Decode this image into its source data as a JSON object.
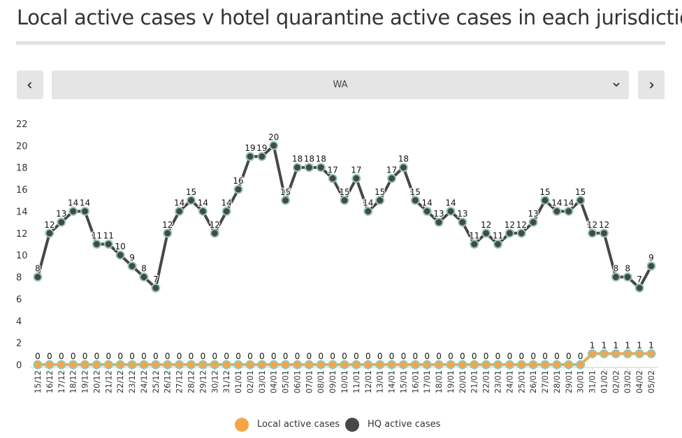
{
  "title": "Local active cases v hotel quarantine active cases in each jurisdiction",
  "selector": {
    "prev_icon": "chevron-left-icon",
    "next_icon": "chevron-right-icon",
    "dropdown_icon": "chevron-down-icon",
    "selected": "WA"
  },
  "colors": {
    "local": "#f4a54a",
    "hq": "#474747",
    "marker_outline": "#8fc9b3",
    "axis": "#cccccc",
    "text": "#333333"
  },
  "chart_data": {
    "type": "line",
    "title": "",
    "xlabel": "",
    "ylabel": "",
    "ylim": [
      0,
      22
    ],
    "yticks": [
      0,
      2,
      4,
      6,
      8,
      10,
      12,
      14,
      16,
      18,
      20,
      22
    ],
    "categories": [
      "15/12",
      "16/12",
      "17/12",
      "18/12",
      "19/12",
      "20/12",
      "21/12",
      "22/12",
      "23/12",
      "24/12",
      "25/12",
      "26/12",
      "27/12",
      "28/12",
      "29/12",
      "30/12",
      "31/12",
      "01/01",
      "02/01",
      "03/01",
      "04/01",
      "05/01",
      "06/01",
      "07/01",
      "08/01",
      "09/01",
      "10/01",
      "11/01",
      "12/01",
      "13/01",
      "14/01",
      "15/01",
      "16/01",
      "17/01",
      "18/01",
      "19/01",
      "20/01",
      "21/01",
      "22/01",
      "23/01",
      "24/01",
      "25/01",
      "26/01",
      "27/01",
      "28/01",
      "29/01",
      "30/01",
      "31/01",
      "01/02",
      "02/02",
      "03/02",
      "04/02",
      "05/02"
    ],
    "series": [
      {
        "name": "Local active cases",
        "values": [
          0,
          0,
          0,
          0,
          0,
          0,
          0,
          0,
          0,
          0,
          0,
          0,
          0,
          0,
          0,
          0,
          0,
          0,
          0,
          0,
          0,
          0,
          0,
          0,
          0,
          0,
          0,
          0,
          0,
          0,
          0,
          0,
          0,
          0,
          0,
          0,
          0,
          0,
          0,
          0,
          0,
          0,
          0,
          0,
          0,
          0,
          0,
          1,
          1,
          1,
          1,
          1,
          1
        ]
      },
      {
        "name": "HQ active cases",
        "values": [
          8,
          12,
          13,
          14,
          14,
          11,
          11,
          10,
          9,
          8,
          7,
          12,
          14,
          15,
          14,
          12,
          14,
          16,
          19,
          19,
          20,
          15,
          18,
          18,
          18,
          17,
          15,
          17,
          14,
          15,
          17,
          18,
          15,
          14,
          13,
          14,
          13,
          11,
          12,
          11,
          12,
          12,
          13,
          15,
          14,
          14,
          15,
          12,
          12,
          8,
          8,
          7,
          9
        ]
      }
    ],
    "legend": [
      "Local active cases",
      "HQ active cases"
    ],
    "legend_position": "bottom-center"
  }
}
